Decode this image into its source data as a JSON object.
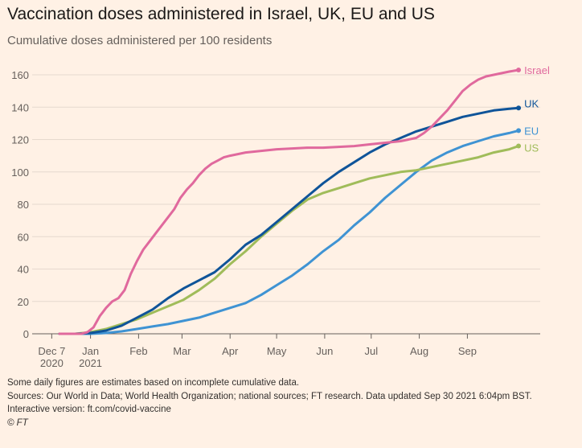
{
  "chart_data": {
    "type": "line",
    "title": "Vaccination doses administered in Israel, UK, EU and US",
    "subtitle": "Cumulative doses administered per 100 residents",
    "xlabel": "",
    "ylabel": "",
    "ylim": [
      0,
      160
    ],
    "yticks": [
      0,
      20,
      40,
      60,
      80,
      100,
      120,
      140,
      160
    ],
    "xlim_days": [
      0,
      297
    ],
    "xticks": [
      {
        "day": -5,
        "label": "Dec 7",
        "label2": "2020"
      },
      {
        "day": 20,
        "label": "Jan",
        "label2": "2021"
      },
      {
        "day": 51,
        "label": "Feb"
      },
      {
        "day": 79,
        "label": "Mar"
      },
      {
        "day": 110,
        "label": "Apr"
      },
      {
        "day": 140,
        "label": "May"
      },
      {
        "day": 171,
        "label": "Jun"
      },
      {
        "day": 201,
        "label": "Jul"
      },
      {
        "day": 232,
        "label": "Aug"
      },
      {
        "day": 263,
        "label": "Sep"
      }
    ],
    "x_unit": "days since Dec 12 2020",
    "grid": true,
    "series": [
      {
        "name": "Israel",
        "color": "#e0699d",
        "x": [
          0,
          10,
          14,
          18,
          22,
          26,
          30,
          34,
          38,
          42,
          46,
          50,
          54,
          58,
          62,
          66,
          70,
          74,
          78,
          82,
          86,
          90,
          94,
          98,
          102,
          106,
          110,
          115,
          120,
          130,
          140,
          150,
          160,
          170,
          180,
          190,
          200,
          210,
          220,
          230,
          235,
          240,
          245,
          250,
          255,
          260,
          265,
          270,
          275,
          280,
          285,
          290,
          296
        ],
        "y": [
          0,
          0,
          0,
          1,
          4,
          11,
          16,
          20,
          22,
          27,
          37,
          45,
          52,
          57,
          62,
          67,
          72,
          77,
          84,
          89,
          93,
          98,
          102,
          105,
          107,
          109,
          110,
          111,
          112,
          113,
          114,
          114.5,
          115,
          115,
          115.5,
          116,
          117,
          118,
          119,
          121,
          124,
          128,
          133,
          138,
          144,
          150,
          154,
          157,
          159,
          160,
          161,
          162,
          163
        ]
      },
      {
        "name": "UK",
        "color": "#0f5499",
        "x": [
          0,
          10,
          20,
          30,
          40,
          50,
          60,
          70,
          80,
          90,
          100,
          110,
          120,
          130,
          140,
          150,
          160,
          170,
          180,
          190,
          200,
          210,
          220,
          230,
          240,
          250,
          260,
          270,
          280,
          290,
          296
        ],
        "y": [
          0,
          0,
          0.5,
          2,
          5,
          10,
          15,
          22,
          28,
          33,
          38,
          46,
          55,
          61,
          69,
          77,
          85,
          93,
          100,
          106,
          112,
          117,
          121,
          125,
          128,
          131,
          134,
          136,
          138,
          139,
          139.5
        ]
      },
      {
        "name": "EU",
        "color": "#3f93d3",
        "x": [
          0,
          10,
          20,
          30,
          40,
          50,
          60,
          70,
          80,
          90,
          100,
          110,
          120,
          130,
          140,
          150,
          160,
          170,
          180,
          190,
          200,
          210,
          220,
          230,
          240,
          250,
          260,
          270,
          280,
          290,
          296
        ],
        "y": [
          0,
          0,
          0,
          0.5,
          1.5,
          3,
          4.5,
          6,
          8,
          10,
          13,
          16,
          19,
          24,
          30,
          36,
          43,
          51,
          58,
          67,
          75,
          84,
          92,
          100,
          107,
          112,
          116,
          119,
          122,
          124,
          125.5
        ]
      },
      {
        "name": "US",
        "color": "#a0bc5a",
        "x": [
          0,
          10,
          20,
          30,
          40,
          50,
          60,
          70,
          80,
          90,
          100,
          110,
          120,
          130,
          140,
          150,
          160,
          170,
          180,
          190,
          200,
          210,
          220,
          230,
          240,
          250,
          260,
          270,
          280,
          290,
          296
        ],
        "y": [
          0,
          0,
          1,
          3,
          6,
          9,
          13,
          17,
          21,
          27,
          34,
          43,
          51,
          60,
          68,
          76,
          83,
          87,
          90,
          93,
          96,
          98,
          100,
          101,
          103,
          105,
          107,
          109,
          112,
          114,
          116
        ]
      }
    ]
  },
  "footer": {
    "note": "Some daily figures are estimates based on incomplete cumulative data.",
    "sources": "Sources: Our World in Data; World Health Organization; national sources; FT research. Data updated Sep 30 2021 6:04pm BST.",
    "interactive": "Interactive version: ft.com/covid-vaccine",
    "copyright": "© FT"
  }
}
